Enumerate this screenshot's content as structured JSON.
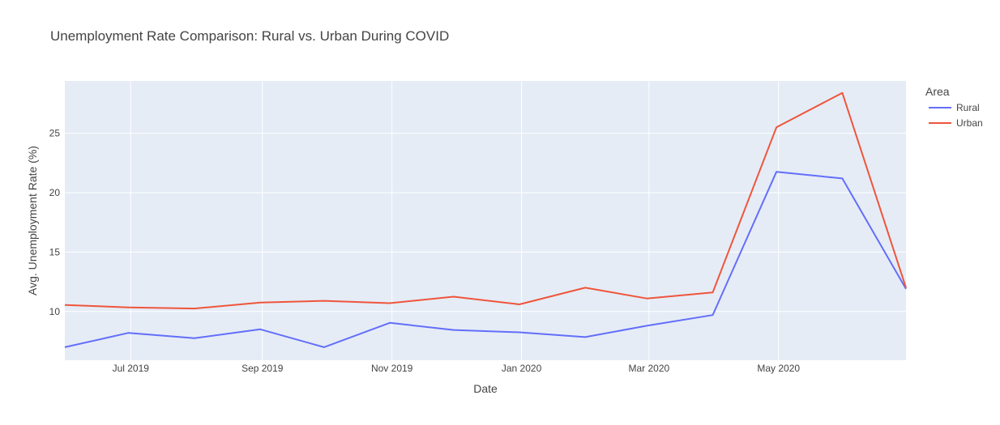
{
  "chart_data": {
    "type": "line",
    "title": "Unemployment Rate Comparison: Rural vs. Urban During COVID",
    "xlabel": "Date",
    "ylabel": "Avg. Unemployment Rate (%)",
    "x": [
      "2019-05-31",
      "2019-06-30",
      "2019-07-31",
      "2019-08-31",
      "2019-09-30",
      "2019-10-31",
      "2019-11-30",
      "2019-12-31",
      "2020-01-31",
      "2020-02-29",
      "2020-03-31",
      "2020-04-30",
      "2020-05-31",
      "2020-06-30"
    ],
    "xlim": [
      "2019-05-31",
      "2020-06-30"
    ],
    "xticks": [
      {
        "date": "2019-07-01",
        "label": "Jul 2019"
      },
      {
        "date": "2019-09-01",
        "label": "Sep 2019"
      },
      {
        "date": "2019-11-01",
        "label": "Nov 2019"
      },
      {
        "date": "2020-01-01",
        "label": "Jan 2020"
      },
      {
        "date": "2020-03-01",
        "label": "Mar 2020"
      },
      {
        "date": "2020-05-01",
        "label": "May 2020"
      }
    ],
    "ylim": [
      5.9,
      29.4
    ],
    "yticks": [
      10,
      15,
      20,
      25
    ],
    "grid": true,
    "legend": {
      "title": "Area",
      "position": "top-right"
    },
    "series": [
      {
        "name": "Rural",
        "color": "#636efa",
        "values": [
          7.0,
          8.2,
          7.75,
          8.5,
          7.0,
          9.05,
          8.45,
          8.25,
          7.85,
          8.8,
          9.7,
          21.75,
          21.2,
          11.9
        ]
      },
      {
        "name": "Urban",
        "color": "#ef553b",
        "values": [
          10.55,
          10.35,
          10.25,
          10.75,
          10.9,
          10.7,
          11.25,
          10.6,
          12.0,
          11.1,
          11.6,
          25.5,
          28.4,
          12.0
        ]
      }
    ]
  }
}
